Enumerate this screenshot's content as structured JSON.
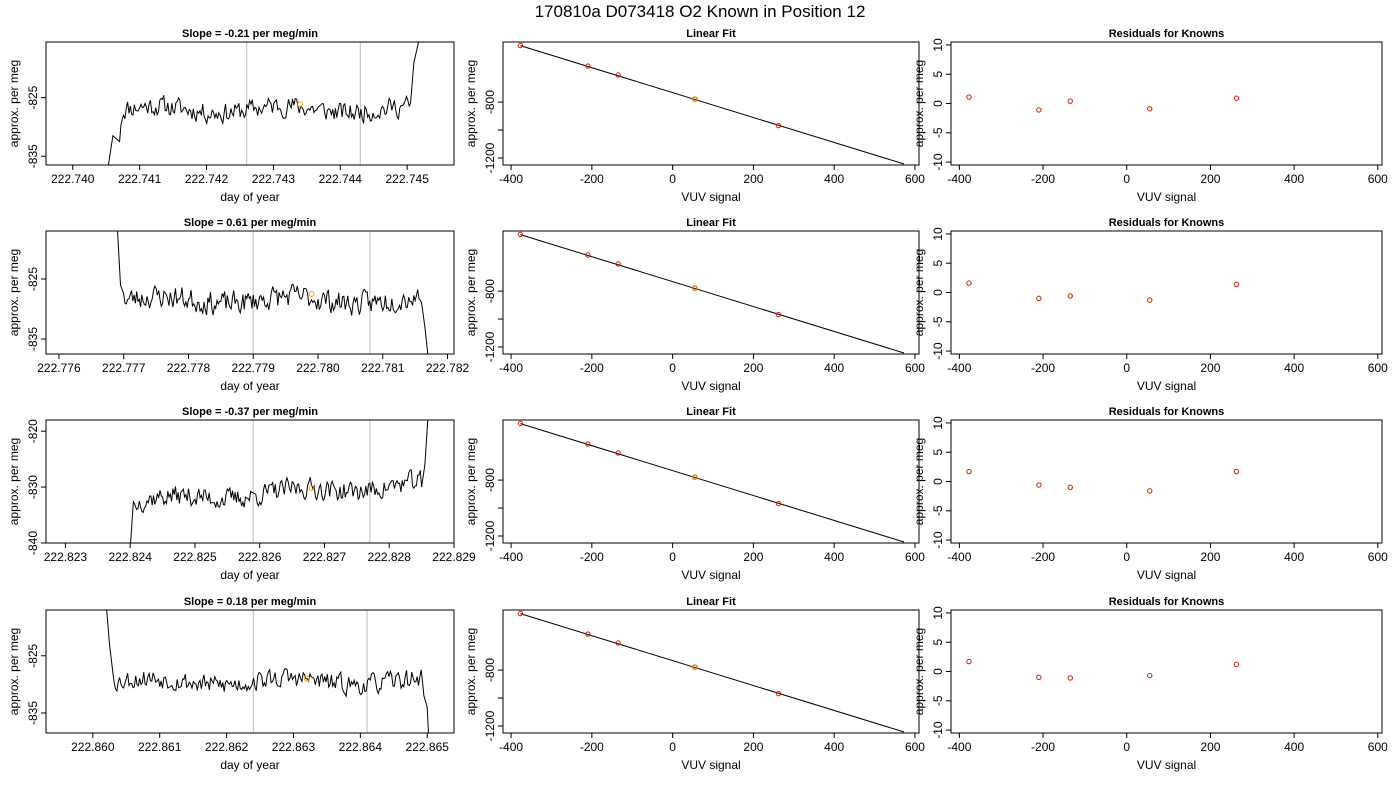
{
  "figure": {
    "title": "170810a     D073418   O2 Known in Position  12"
  },
  "chart_data": [
    {
      "type": "line",
      "row": 1,
      "panel": "timeseries",
      "title": "Slope =  -0.21  per meg/min",
      "xlabel": "day of year",
      "ylabel": "approx. per meg",
      "xlim": [
        222.7396,
        222.7457
      ],
      "ylim": [
        -836.5,
        -815.5
      ],
      "xticks": [
        222.74,
        222.741,
        222.742,
        222.743,
        222.744,
        222.745
      ],
      "xtick_labels": [
        "222.740",
        "222.741",
        "222.742",
        "222.743",
        "222.744",
        "222.745"
      ],
      "yticks": [
        -835,
        -825
      ],
      "ytick_labels": [
        "-835",
        "-825"
      ],
      "vlines": [
        222.7426,
        222.7443
      ],
      "highlight": {
        "x": 222.7434,
        "y": -826.1
      },
      "start": 222.7405,
      "end": 222.7452,
      "dx": 2e-05,
      "seed": 11,
      "level": -827,
      "noise": 1.5,
      "head": [
        [
          222.7405,
          -839
        ],
        [
          222.7406,
          -831.5
        ],
        [
          222.7407,
          -832.5
        ]
      ],
      "tail": [
        [
          222.74505,
          -826
        ],
        [
          222.7451,
          -819
        ],
        [
          222.7452,
          -814
        ]
      ]
    },
    {
      "type": "scatter",
      "row": 1,
      "panel": "fit",
      "title": "Linear Fit",
      "xlabel": "VUV signal",
      "ylabel": "approx. per meg",
      "xlim": [
        -420,
        610
      ],
      "ylim": [
        -1250,
        -370
      ],
      "xticks": [
        -400,
        -200,
        0,
        200,
        400,
        600
      ],
      "xtick_labels": [
        "-400",
        "-200",
        "0",
        "200",
        "400",
        "600"
      ],
      "yticks": [
        -1200,
        -1000,
        -800
      ],
      "ytick_labels": [
        "-1200",
        "",
        "-800"
      ],
      "points": [
        [
          -377,
          -395
        ],
        [
          -210,
          -542
        ],
        [
          -135,
          -606
        ],
        [
          55,
          -779
        ],
        [
          262,
          -968
        ]
      ],
      "highlight": [
        55,
        -779
      ],
      "line": [
        [
          -377,
          -396
        ],
        [
          573,
          -1243
        ]
      ]
    },
    {
      "type": "scatter",
      "row": 1,
      "panel": "residuals",
      "title": "Residuals for Knowns",
      "xlabel": "VUV signal",
      "ylabel": "approx. per meg",
      "xlim": [
        -420,
        610
      ],
      "ylim": [
        -10.5,
        10.5
      ],
      "xticks": [
        -400,
        -200,
        0,
        200,
        400,
        600
      ],
      "xtick_labels": [
        "-400",
        "-200",
        "0",
        "200",
        "400",
        "600"
      ],
      "yticks": [
        -10,
        -5,
        0,
        5,
        10
      ],
      "ytick_labels": [
        "-10",
        "-5",
        "0",
        "5",
        "10"
      ],
      "points": [
        [
          -377,
          1.1
        ],
        [
          -210,
          -1.1
        ],
        [
          -135,
          0.4
        ],
        [
          55,
          -0.9
        ],
        [
          262,
          0.9
        ]
      ]
    },
    {
      "type": "line",
      "row": 2,
      "panel": "timeseries",
      "title": "Slope =  0.61  per meg/min",
      "xlabel": "day of year",
      "ylabel": "approx. per meg",
      "xlim": [
        222.7758,
        222.7821
      ],
      "ylim": [
        -837.5,
        -817
      ],
      "xticks": [
        222.776,
        222.777,
        222.778,
        222.779,
        222.78,
        222.781,
        222.782
      ],
      "xtick_labels": [
        "222.776",
        "222.777",
        "222.778",
        "222.779",
        "222.780",
        "222.781",
        "222.782"
      ],
      "yticks": [
        -835,
        -825
      ],
      "ytick_labels": [
        "-835",
        "-825"
      ],
      "vlines": [
        222.779,
        222.7808
      ],
      "highlight": {
        "x": 222.7799,
        "y": -827.5
      },
      "start": 222.7769,
      "end": 222.7817,
      "dx": 2e-05,
      "seed": 23,
      "level": -828.5,
      "noise": 1.7,
      "head": [
        [
          222.7769,
          -816
        ],
        [
          222.77695,
          -826
        ],
        [
          222.777,
          -827.5
        ]
      ],
      "tail": [
        [
          222.7816,
          -829
        ],
        [
          222.78165,
          -833
        ],
        [
          222.7817,
          -838
        ]
      ]
    },
    {
      "type": "scatter",
      "row": 2,
      "panel": "fit",
      "title": "Linear Fit",
      "xlabel": "VUV signal",
      "ylabel": "approx. per meg",
      "xlim": [
        -420,
        610
      ],
      "ylim": [
        -1250,
        -370
      ],
      "xticks": [
        -400,
        -200,
        0,
        200,
        400,
        600
      ],
      "xtick_labels": [
        "-400",
        "-200",
        "0",
        "200",
        "400",
        "600"
      ],
      "yticks": [
        -1200,
        -1000,
        -800
      ],
      "ytick_labels": [
        "-1200",
        "",
        "-800"
      ],
      "points": [
        [
          -377,
          -395
        ],
        [
          -210,
          -542
        ],
        [
          -135,
          -606
        ],
        [
          55,
          -779
        ],
        [
          262,
          -968
        ]
      ],
      "highlight": [
        55,
        -779
      ],
      "line": [
        [
          -377,
          -396
        ],
        [
          573,
          -1243
        ]
      ]
    },
    {
      "type": "scatter",
      "row": 2,
      "panel": "residuals",
      "title": "Residuals for Knowns",
      "xlabel": "VUV signal",
      "ylabel": "approx. per meg",
      "xlim": [
        -420,
        610
      ],
      "ylim": [
        -10.5,
        10.5
      ],
      "xticks": [
        -400,
        -200,
        0,
        200,
        400,
        600
      ],
      "xtick_labels": [
        "-400",
        "-200",
        "0",
        "200",
        "400",
        "600"
      ],
      "yticks": [
        -10,
        -5,
        0,
        5,
        10
      ],
      "ytick_labels": [
        "-10",
        "-5",
        "0",
        "5",
        "10"
      ],
      "points": [
        [
          -377,
          1.6
        ],
        [
          -210,
          -1.0
        ],
        [
          -135,
          -0.6
        ],
        [
          55,
          -1.3
        ],
        [
          262,
          1.4
        ]
      ]
    },
    {
      "type": "line",
      "row": 3,
      "panel": "timeseries",
      "title": "Slope =  -0.37  per meg/min",
      "xlabel": "day of year",
      "ylabel": "approx. per meg",
      "xlim": [
        222.8227,
        222.829
      ],
      "ylim": [
        -840,
        -818
      ],
      "xticks": [
        222.823,
        222.824,
        222.825,
        222.826,
        222.827,
        222.828,
        222.829
      ],
      "xtick_labels": [
        "222.823",
        "222.824",
        "222.825",
        "222.826",
        "222.827",
        "222.828",
        "222.829"
      ],
      "yticks": [
        -840,
        -830,
        -820
      ],
      "ytick_labels": [
        "-840",
        "-830",
        "-820"
      ],
      "vlines": [
        222.8259,
        222.8277
      ],
      "highlight": {
        "x": 222.8268,
        "y": -830.2
      },
      "start": 222.824,
      "end": 222.8286,
      "dx": 2e-05,
      "seed": 37,
      "level": -831,
      "noise": 1.6,
      "trend": 3,
      "head": [
        [
          222.824,
          -841
        ],
        [
          222.82405,
          -832.5
        ],
        [
          222.8241,
          -834
        ]
      ],
      "tail": [
        [
          222.8285,
          -830
        ],
        [
          222.82855,
          -826
        ],
        [
          222.8286,
          -817
        ]
      ]
    },
    {
      "type": "scatter",
      "row": 3,
      "panel": "fit",
      "title": "Linear Fit",
      "xlabel": "VUV signal",
      "ylabel": "approx. per meg",
      "xlim": [
        -420,
        610
      ],
      "ylim": [
        -1250,
        -370
      ],
      "xticks": [
        -400,
        -200,
        0,
        200,
        400,
        600
      ],
      "xtick_labels": [
        "-400",
        "-200",
        "0",
        "200",
        "400",
        "600"
      ],
      "yticks": [
        -1200,
        -1000,
        -800
      ],
      "ytick_labels": [
        "-1200",
        "",
        "-800"
      ],
      "points": [
        [
          -377,
          -395
        ],
        [
          -210,
          -542
        ],
        [
          -135,
          -606
        ],
        [
          55,
          -779
        ],
        [
          262,
          -968
        ]
      ],
      "highlight": [
        55,
        -779
      ],
      "line": [
        [
          -377,
          -396
        ],
        [
          573,
          -1243
        ]
      ]
    },
    {
      "type": "scatter",
      "row": 3,
      "panel": "residuals",
      "title": "Residuals for Knowns",
      "xlabel": "VUV signal",
      "ylabel": "approx. per meg",
      "xlim": [
        -420,
        610
      ],
      "ylim": [
        -10.5,
        10.5
      ],
      "xticks": [
        -400,
        -200,
        0,
        200,
        400,
        600
      ],
      "xtick_labels": [
        "-400",
        "-200",
        "0",
        "200",
        "400",
        "600"
      ],
      "yticks": [
        -10,
        -5,
        0,
        5,
        10
      ],
      "ytick_labels": [
        "-10",
        "-5",
        "0",
        "5",
        "10"
      ],
      "points": [
        [
          -377,
          1.7
        ],
        [
          -210,
          -0.6
        ],
        [
          -135,
          -1.0
        ],
        [
          55,
          -1.6
        ],
        [
          262,
          1.7
        ]
      ]
    },
    {
      "type": "line",
      "row": 4,
      "panel": "timeseries",
      "title": "Slope =  0.18  per meg/min",
      "xlabel": "day of year",
      "ylabel": "approx. per meg",
      "xlim": [
        222.8593,
        222.8654
      ],
      "ylim": [
        -838.5,
        -817
      ],
      "xticks": [
        222.86,
        222.861,
        222.862,
        222.863,
        222.864,
        222.865
      ],
      "xtick_labels": [
        "222.860",
        "222.861",
        "222.862",
        "222.863",
        "222.864",
        "222.865"
      ],
      "yticks": [
        -835,
        -825
      ],
      "ytick_labels": [
        "-835",
        "-825"
      ],
      "vlines": [
        222.8624,
        222.8641
      ],
      "highlight": {
        "x": 222.8632,
        "y": -829.0
      },
      "start": 222.8602,
      "end": 222.865,
      "dx": 2e-05,
      "seed": 53,
      "level": -829.5,
      "noise": 1.5,
      "head": [
        [
          222.8602,
          -816
        ],
        [
          222.86025,
          -823
        ],
        [
          222.8603,
          -828
        ]
      ],
      "tail": [
        [
          222.86495,
          -832
        ],
        [
          222.865,
          -834
        ],
        [
          222.86502,
          -839
        ]
      ]
    },
    {
      "type": "scatter",
      "row": 4,
      "panel": "fit",
      "title": "Linear Fit",
      "xlabel": "VUV signal",
      "ylabel": "approx. per meg",
      "xlim": [
        -420,
        610
      ],
      "ylim": [
        -1250,
        -370
      ],
      "xticks": [
        -400,
        -200,
        0,
        200,
        400,
        600
      ],
      "xtick_labels": [
        "-400",
        "-200",
        "0",
        "200",
        "400",
        "600"
      ],
      "yticks": [
        -1200,
        -1000,
        -800
      ],
      "ytick_labels": [
        "-1200",
        "",
        "-800"
      ],
      "points": [
        [
          -377,
          -395
        ],
        [
          -210,
          -542
        ],
        [
          -135,
          -606
        ],
        [
          55,
          -779
        ],
        [
          262,
          -968
        ]
      ],
      "highlight": [
        55,
        -779
      ],
      "line": [
        [
          -377,
          -396
        ],
        [
          573,
          -1243
        ]
      ]
    },
    {
      "type": "scatter",
      "row": 4,
      "panel": "residuals",
      "title": "Residuals for Knowns",
      "xlabel": "VUV signal",
      "ylabel": "approx. per meg",
      "xlim": [
        -420,
        610
      ],
      "ylim": [
        -10.5,
        10.5
      ],
      "xticks": [
        -400,
        -200,
        0,
        200,
        400,
        600
      ],
      "xtick_labels": [
        "-400",
        "-200",
        "0",
        "200",
        "400",
        "600"
      ],
      "yticks": [
        -10,
        -5,
        0,
        5,
        10
      ],
      "ytick_labels": [
        "-10",
        "-5",
        "0",
        "5",
        "10"
      ],
      "points": [
        [
          -377,
          1.7
        ],
        [
          -210,
          -1.0
        ],
        [
          -135,
          -1.1
        ],
        [
          55,
          -0.7
        ],
        [
          262,
          1.2
        ]
      ]
    }
  ],
  "colors": {
    "line": "#000000",
    "vline": "#c8c8c8",
    "point": "#cc2200",
    "highlight": "#f0a020",
    "axis": "#000000"
  }
}
